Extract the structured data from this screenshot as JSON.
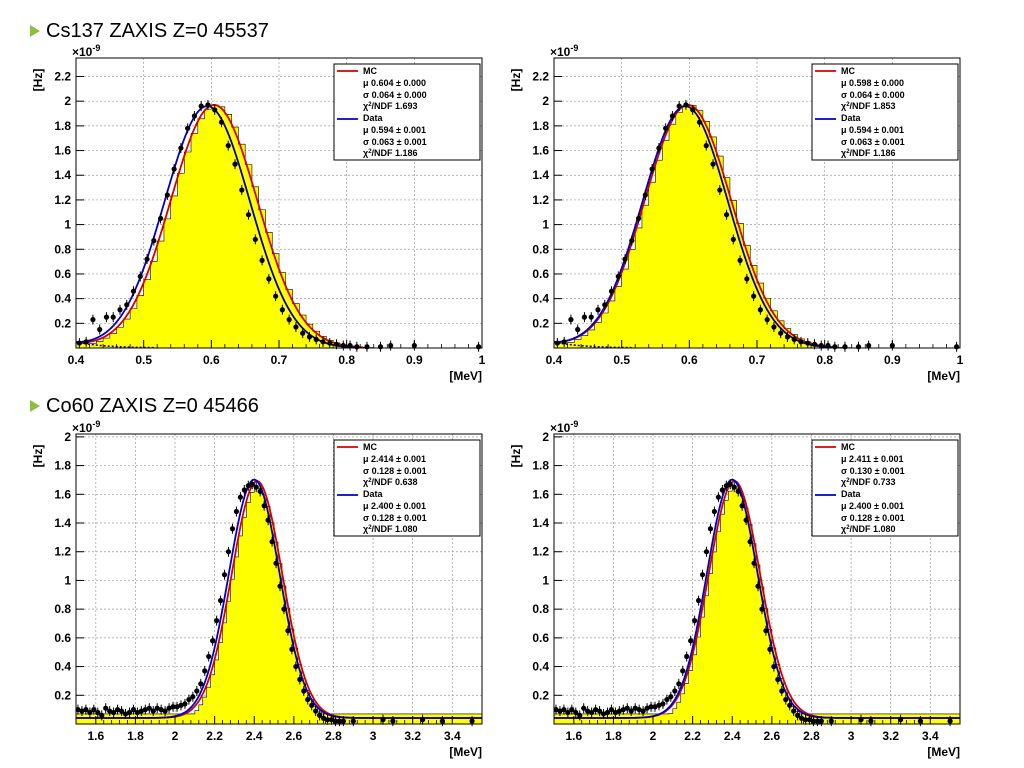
{
  "sections": [
    {
      "title": "Cs137 ZAXIS Z=0 45537"
    },
    {
      "title": "Co60 ZAXIS Z=0 45466"
    }
  ],
  "chart_data": [
    {
      "type": "histogram",
      "xlabel": "[MeV]",
      "ylabel": "[Hz]",
      "exponent": "×10",
      "exponent_power": "-9",
      "xlim": [
        0.4,
        1.0
      ],
      "ylim": [
        0,
        2.35
      ],
      "xticks": [
        "0.4",
        "0.5",
        "0.6",
        "0.7",
        "0.8",
        "0.9",
        "1"
      ],
      "yticks": [
        "0.2",
        "0.4",
        "0.6",
        "0.8",
        "1",
        "1.2",
        "1.4",
        "1.6",
        "1.8",
        "2",
        "2.2"
      ],
      "grid": true,
      "fill_color": "#ffff00",
      "legend": {
        "mc_label": "MC",
        "mc_mu": "0.604",
        "mc_mu_err": "0.000",
        "mc_sigma": "0.064",
        "mc_sigma_err": "0.000",
        "mc_chi2": "1.693",
        "data_label": "Data",
        "data_mu": "0.594",
        "data_mu_err": "0.001",
        "data_sigma": "0.063",
        "data_sigma_err": "0.001",
        "data_chi2": "1.186",
        "mu_sym": "μ",
        "sigma_sym": "σ",
        "pm": "±",
        "chi2_sym": "χ",
        "chi2_pow": "2",
        "chi2_ndf": "/NDF"
      },
      "series": [
        {
          "name": "MC",
          "color": "#d40000",
          "mu": 0.604,
          "sigma": 0.064,
          "amp": 1.97
        },
        {
          "name": "Data",
          "color": "#0000c8",
          "mu": 0.594,
          "sigma": 0.063,
          "amp": 1.96
        }
      ],
      "hist": {
        "mu": 0.607,
        "sigma": 0.064,
        "amp": 1.97,
        "bin": 0.01
      },
      "background": {
        "amp": 0.05,
        "decay": 0.04,
        "x0": 0.4
      },
      "data_points": {
        "x": [
          0.405,
          0.415,
          0.425,
          0.435,
          0.445,
          0.455,
          0.465,
          0.475,
          0.485,
          0.495,
          0.505,
          0.515,
          0.525,
          0.535,
          0.545,
          0.555,
          0.565,
          0.575,
          0.585,
          0.595,
          0.605,
          0.615,
          0.625,
          0.635,
          0.645,
          0.655,
          0.665,
          0.675,
          0.685,
          0.695,
          0.705,
          0.715,
          0.725,
          0.735,
          0.745,
          0.755,
          0.765,
          0.775,
          0.785,
          0.795,
          0.805,
          0.815,
          0.83,
          0.85,
          0.865,
          0.9,
          0.995
        ],
        "y": [
          0.04,
          0.05,
          0.23,
          0.15,
          0.25,
          0.25,
          0.31,
          0.35,
          0.46,
          0.58,
          0.72,
          0.87,
          1.05,
          1.24,
          1.45,
          1.62,
          1.78,
          1.88,
          1.96,
          1.97,
          1.93,
          1.83,
          1.64,
          1.49,
          1.28,
          1.08,
          0.88,
          0.71,
          0.56,
          0.42,
          0.31,
          0.23,
          0.17,
          0.12,
          0.09,
          0.07,
          0.05,
          0.04,
          0.03,
          0.02,
          0.02,
          0.01,
          0.01,
          0.01,
          0.02,
          0.02,
          0.01
        ]
      }
    },
    {
      "type": "histogram",
      "xlabel": "[MeV]",
      "ylabel": "[Hz]",
      "exponent": "×10",
      "exponent_power": "-9",
      "xlim": [
        0.4,
        1.0
      ],
      "ylim": [
        0,
        2.35
      ],
      "xticks": [
        "0.4",
        "0.5",
        "0.6",
        "0.7",
        "0.8",
        "0.9",
        "1"
      ],
      "yticks": [
        "0.2",
        "0.4",
        "0.6",
        "0.8",
        "1",
        "1.2",
        "1.4",
        "1.6",
        "1.8",
        "2",
        "2.2"
      ],
      "grid": true,
      "fill_color": "#ffff00",
      "legend": {
        "mc_label": "MC",
        "mc_mu": "0.598",
        "mc_mu_err": "0.000",
        "mc_sigma": "0.064",
        "mc_sigma_err": "0.000",
        "mc_chi2": "1.853",
        "data_label": "Data",
        "data_mu": "0.594",
        "data_mu_err": "0.001",
        "data_sigma": "0.063",
        "data_sigma_err": "0.001",
        "data_chi2": "1.186",
        "mu_sym": "μ",
        "sigma_sym": "σ",
        "pm": "±",
        "chi2_sym": "χ",
        "chi2_pow": "2",
        "chi2_ndf": "/NDF"
      },
      "series": [
        {
          "name": "MC",
          "color": "#d40000",
          "mu": 0.598,
          "sigma": 0.064,
          "amp": 1.97
        },
        {
          "name": "Data",
          "color": "#0000c8",
          "mu": 0.594,
          "sigma": 0.063,
          "amp": 1.96
        }
      ],
      "hist": {
        "mu": 0.601,
        "sigma": 0.064,
        "amp": 1.97,
        "bin": 0.01
      },
      "background": {
        "amp": 0.05,
        "decay": 0.04,
        "x0": 0.4
      },
      "data_points": {
        "x": [
          0.405,
          0.415,
          0.425,
          0.435,
          0.445,
          0.455,
          0.465,
          0.475,
          0.485,
          0.495,
          0.505,
          0.515,
          0.525,
          0.535,
          0.545,
          0.555,
          0.565,
          0.575,
          0.585,
          0.595,
          0.605,
          0.615,
          0.625,
          0.635,
          0.645,
          0.655,
          0.665,
          0.675,
          0.685,
          0.695,
          0.705,
          0.715,
          0.725,
          0.735,
          0.745,
          0.755,
          0.765,
          0.775,
          0.785,
          0.795,
          0.805,
          0.815,
          0.83,
          0.85,
          0.865,
          0.9,
          0.995
        ],
        "y": [
          0.04,
          0.05,
          0.23,
          0.15,
          0.25,
          0.25,
          0.31,
          0.35,
          0.46,
          0.58,
          0.72,
          0.87,
          1.05,
          1.24,
          1.45,
          1.62,
          1.78,
          1.88,
          1.96,
          1.97,
          1.93,
          1.83,
          1.64,
          1.49,
          1.28,
          1.08,
          0.88,
          0.71,
          0.56,
          0.42,
          0.31,
          0.23,
          0.17,
          0.12,
          0.09,
          0.07,
          0.05,
          0.04,
          0.03,
          0.02,
          0.02,
          0.01,
          0.01,
          0.01,
          0.02,
          0.02,
          0.01
        ]
      }
    },
    {
      "type": "histogram",
      "xlabel": "[MeV]",
      "ylabel": "[Hz]",
      "exponent": "×10",
      "exponent_power": "-9",
      "xlim": [
        1.5,
        3.55
      ],
      "ylim": [
        0,
        2.02
      ],
      "xticks": [
        "1.6",
        "1.8",
        "2",
        "2.2",
        "2.4",
        "2.6",
        "2.8",
        "3",
        "3.2",
        "3.4"
      ],
      "yticks": [
        "0.2",
        "0.4",
        "0.6",
        "0.8",
        "1",
        "1.2",
        "1.4",
        "1.6",
        "1.8",
        "2"
      ],
      "grid": true,
      "fill_color": "#ffff00",
      "legend": {
        "mc_label": "MC",
        "mc_mu": "2.414",
        "mc_mu_err": "0.001",
        "mc_sigma": "0.128",
        "mc_sigma_err": "0.001",
        "mc_chi2": "0.638",
        "data_label": "Data",
        "data_mu": "2.400",
        "data_mu_err": "0.001",
        "data_sigma": "0.128",
        "data_sigma_err": "0.001",
        "data_chi2": "1.080",
        "mu_sym": "μ",
        "sigma_sym": "σ",
        "pm": "±",
        "chi2_sym": "χ",
        "chi2_pow": "2",
        "chi2_ndf": "/NDF"
      },
      "series": [
        {
          "name": "MC",
          "color": "#d40000",
          "mu": 2.414,
          "sigma": 0.128,
          "amp": 1.65
        },
        {
          "name": "Data",
          "color": "#0000c8",
          "mu": 2.4,
          "sigma": 0.128,
          "amp": 1.66
        }
      ],
      "hist": {
        "mu": 2.417,
        "sigma": 0.128,
        "amp": 1.65,
        "bin": 0.02,
        "base": 0.07
      },
      "background": {
        "amp": 0.07,
        "decay": 0,
        "x0": 1.5
      },
      "data_points": {
        "x": [
          1.51,
          1.53,
          1.55,
          1.57,
          1.59,
          1.61,
          1.63,
          1.65,
          1.67,
          1.69,
          1.71,
          1.73,
          1.75,
          1.77,
          1.79,
          1.81,
          1.83,
          1.85,
          1.87,
          1.89,
          1.91,
          1.93,
          1.95,
          1.97,
          1.99,
          2.01,
          2.03,
          2.05,
          2.07,
          2.09,
          2.11,
          2.13,
          2.15,
          2.17,
          2.19,
          2.21,
          2.23,
          2.25,
          2.27,
          2.29,
          2.31,
          2.33,
          2.35,
          2.37,
          2.39,
          2.41,
          2.43,
          2.45,
          2.47,
          2.49,
          2.51,
          2.53,
          2.55,
          2.57,
          2.59,
          2.61,
          2.63,
          2.65,
          2.67,
          2.69,
          2.71,
          2.73,
          2.75,
          2.77,
          2.79,
          2.81,
          2.83,
          2.85,
          2.9,
          3.05,
          3.1,
          3.25,
          3.35,
          3.5
        ],
        "y": [
          0.1,
          0.09,
          0.1,
          0.08,
          0.1,
          0.08,
          0.06,
          0.11,
          0.09,
          0.08,
          0.1,
          0.09,
          0.07,
          0.08,
          0.1,
          0.08,
          0.09,
          0.1,
          0.11,
          0.09,
          0.11,
          0.1,
          0.09,
          0.11,
          0.12,
          0.12,
          0.13,
          0.14,
          0.17,
          0.19,
          0.23,
          0.28,
          0.37,
          0.47,
          0.58,
          0.72,
          0.86,
          1.04,
          1.2,
          1.36,
          1.48,
          1.58,
          1.63,
          1.66,
          1.67,
          1.65,
          1.62,
          1.52,
          1.42,
          1.27,
          1.12,
          0.96,
          0.8,
          0.65,
          0.52,
          0.4,
          0.31,
          0.23,
          0.17,
          0.13,
          0.09,
          0.06,
          0.04,
          0.03,
          0.03,
          0.02,
          0.02,
          0.02,
          0.02,
          0.03,
          0.02,
          0.03,
          0.02,
          0.02
        ]
      }
    },
    {
      "type": "histogram",
      "xlabel": "[MeV]",
      "ylabel": "[Hz]",
      "exponent": "×10",
      "exponent_power": "-9",
      "xlim": [
        1.5,
        3.55
      ],
      "ylim": [
        0,
        2.02
      ],
      "xticks": [
        "1.6",
        "1.8",
        "2",
        "2.2",
        "2.4",
        "2.6",
        "2.8",
        "3",
        "3.2",
        "3.4"
      ],
      "yticks": [
        "0.2",
        "0.4",
        "0.6",
        "0.8",
        "1",
        "1.2",
        "1.4",
        "1.6",
        "1.8",
        "2"
      ],
      "grid": true,
      "fill_color": "#ffff00",
      "legend": {
        "mc_label": "MC",
        "mc_mu": "2.411",
        "mc_mu_err": "0.001",
        "mc_sigma": "0.130",
        "mc_sigma_err": "0.001",
        "mc_chi2": "0.733",
        "data_label": "Data",
        "data_mu": "2.400",
        "data_mu_err": "0.001",
        "data_sigma": "0.128",
        "data_sigma_err": "0.001",
        "data_chi2": "1.080",
        "mu_sym": "μ",
        "sigma_sym": "σ",
        "pm": "±",
        "chi2_sym": "χ",
        "chi2_pow": "2",
        "chi2_ndf": "/NDF"
      },
      "series": [
        {
          "name": "MC",
          "color": "#d40000",
          "mu": 2.411,
          "sigma": 0.13,
          "amp": 1.65
        },
        {
          "name": "Data",
          "color": "#0000c8",
          "mu": 2.4,
          "sigma": 0.128,
          "amp": 1.66
        }
      ],
      "hist": {
        "mu": 2.414,
        "sigma": 0.13,
        "amp": 1.65,
        "bin": 0.02,
        "base": 0.07
      },
      "background": {
        "amp": 0.07,
        "decay": 0,
        "x0": 1.5
      },
      "data_points": {
        "x": [
          1.51,
          1.53,
          1.55,
          1.57,
          1.59,
          1.61,
          1.63,
          1.65,
          1.67,
          1.69,
          1.71,
          1.73,
          1.75,
          1.77,
          1.79,
          1.81,
          1.83,
          1.85,
          1.87,
          1.89,
          1.91,
          1.93,
          1.95,
          1.97,
          1.99,
          2.01,
          2.03,
          2.05,
          2.07,
          2.09,
          2.11,
          2.13,
          2.15,
          2.17,
          2.19,
          2.21,
          2.23,
          2.25,
          2.27,
          2.29,
          2.31,
          2.33,
          2.35,
          2.37,
          2.39,
          2.41,
          2.43,
          2.45,
          2.47,
          2.49,
          2.51,
          2.53,
          2.55,
          2.57,
          2.59,
          2.61,
          2.63,
          2.65,
          2.67,
          2.69,
          2.71,
          2.73,
          2.75,
          2.77,
          2.79,
          2.81,
          2.83,
          2.85,
          2.9,
          3.05,
          3.1,
          3.25,
          3.35,
          3.5
        ],
        "y": [
          0.1,
          0.09,
          0.1,
          0.08,
          0.1,
          0.08,
          0.06,
          0.11,
          0.09,
          0.08,
          0.1,
          0.09,
          0.07,
          0.08,
          0.1,
          0.08,
          0.09,
          0.1,
          0.11,
          0.09,
          0.11,
          0.1,
          0.09,
          0.11,
          0.12,
          0.12,
          0.13,
          0.14,
          0.17,
          0.19,
          0.23,
          0.28,
          0.37,
          0.47,
          0.58,
          0.72,
          0.86,
          1.04,
          1.2,
          1.36,
          1.48,
          1.58,
          1.63,
          1.66,
          1.67,
          1.65,
          1.62,
          1.52,
          1.42,
          1.27,
          1.12,
          0.96,
          0.8,
          0.65,
          0.52,
          0.4,
          0.31,
          0.23,
          0.17,
          0.13,
          0.09,
          0.06,
          0.04,
          0.03,
          0.03,
          0.02,
          0.02,
          0.02,
          0.02,
          0.03,
          0.02,
          0.03,
          0.02,
          0.02
        ]
      }
    }
  ]
}
